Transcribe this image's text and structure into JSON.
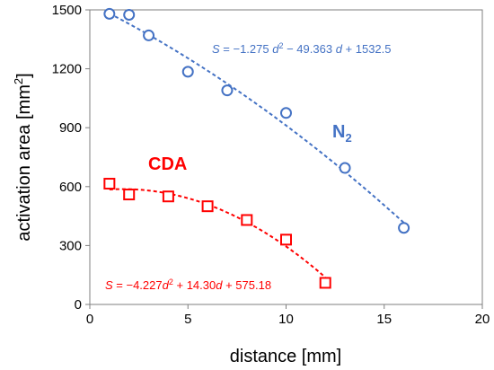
{
  "chart_data": {
    "type": "scatter",
    "xlabel": "distance [mm]",
    "ylabel": "activation area [mm",
    "ylabel_sup": "2",
    "ylabel_end": "]",
    "xlim": [
      0,
      20
    ],
    "ylim": [
      0,
      1500
    ],
    "xticks": [
      "0",
      "5",
      "10",
      "15",
      "20"
    ],
    "yticks": [
      "0",
      "300",
      "600",
      "900",
      "1200",
      "1500"
    ],
    "grid": false,
    "series": [
      {
        "name": "N",
        "name_sub": "2",
        "color": "#4472C4",
        "marker": "circle",
        "fit": "quadratic",
        "fit_coefficients": {
          "a": -1.275,
          "b": -49.363,
          "c": 1532.5
        },
        "fit_range": [
          1,
          16
        ],
        "equation": {
          "s": "S",
          "p1": " = −1.275 ",
          "d": "d",
          "sup": "2",
          "p2": " − 49.363 ",
          "d2": "d",
          "p3": " + 1532.5"
        },
        "points": [
          {
            "x": 1,
            "y": 1480
          },
          {
            "x": 2,
            "y": 1475
          },
          {
            "x": 3,
            "y": 1370
          },
          {
            "x": 5,
            "y": 1185
          },
          {
            "x": 7,
            "y": 1090
          },
          {
            "x": 10,
            "y": 975
          },
          {
            "x": 13,
            "y": 695
          },
          {
            "x": 16,
            "y": 390
          }
        ]
      },
      {
        "name": "CDA",
        "color": "#FF0000",
        "marker": "square",
        "fit": "quadratic",
        "fit_coefficients": {
          "a": -4.227,
          "b": 14.3,
          "c": 575.18
        },
        "fit_range": [
          1,
          12
        ],
        "equation": {
          "s": "S",
          "p1": " = −4.227",
          "d": "d",
          "sup": "2",
          "p2": " + 14.30",
          "d2": "d",
          "p3": " + 575.18"
        },
        "points": [
          {
            "x": 1,
            "y": 615
          },
          {
            "x": 2,
            "y": 560
          },
          {
            "x": 4,
            "y": 550
          },
          {
            "x": 6,
            "y": 500
          },
          {
            "x": 8,
            "y": 430
          },
          {
            "x": 10,
            "y": 330
          },
          {
            "x": 12,
            "y": 110
          }
        ]
      }
    ]
  }
}
